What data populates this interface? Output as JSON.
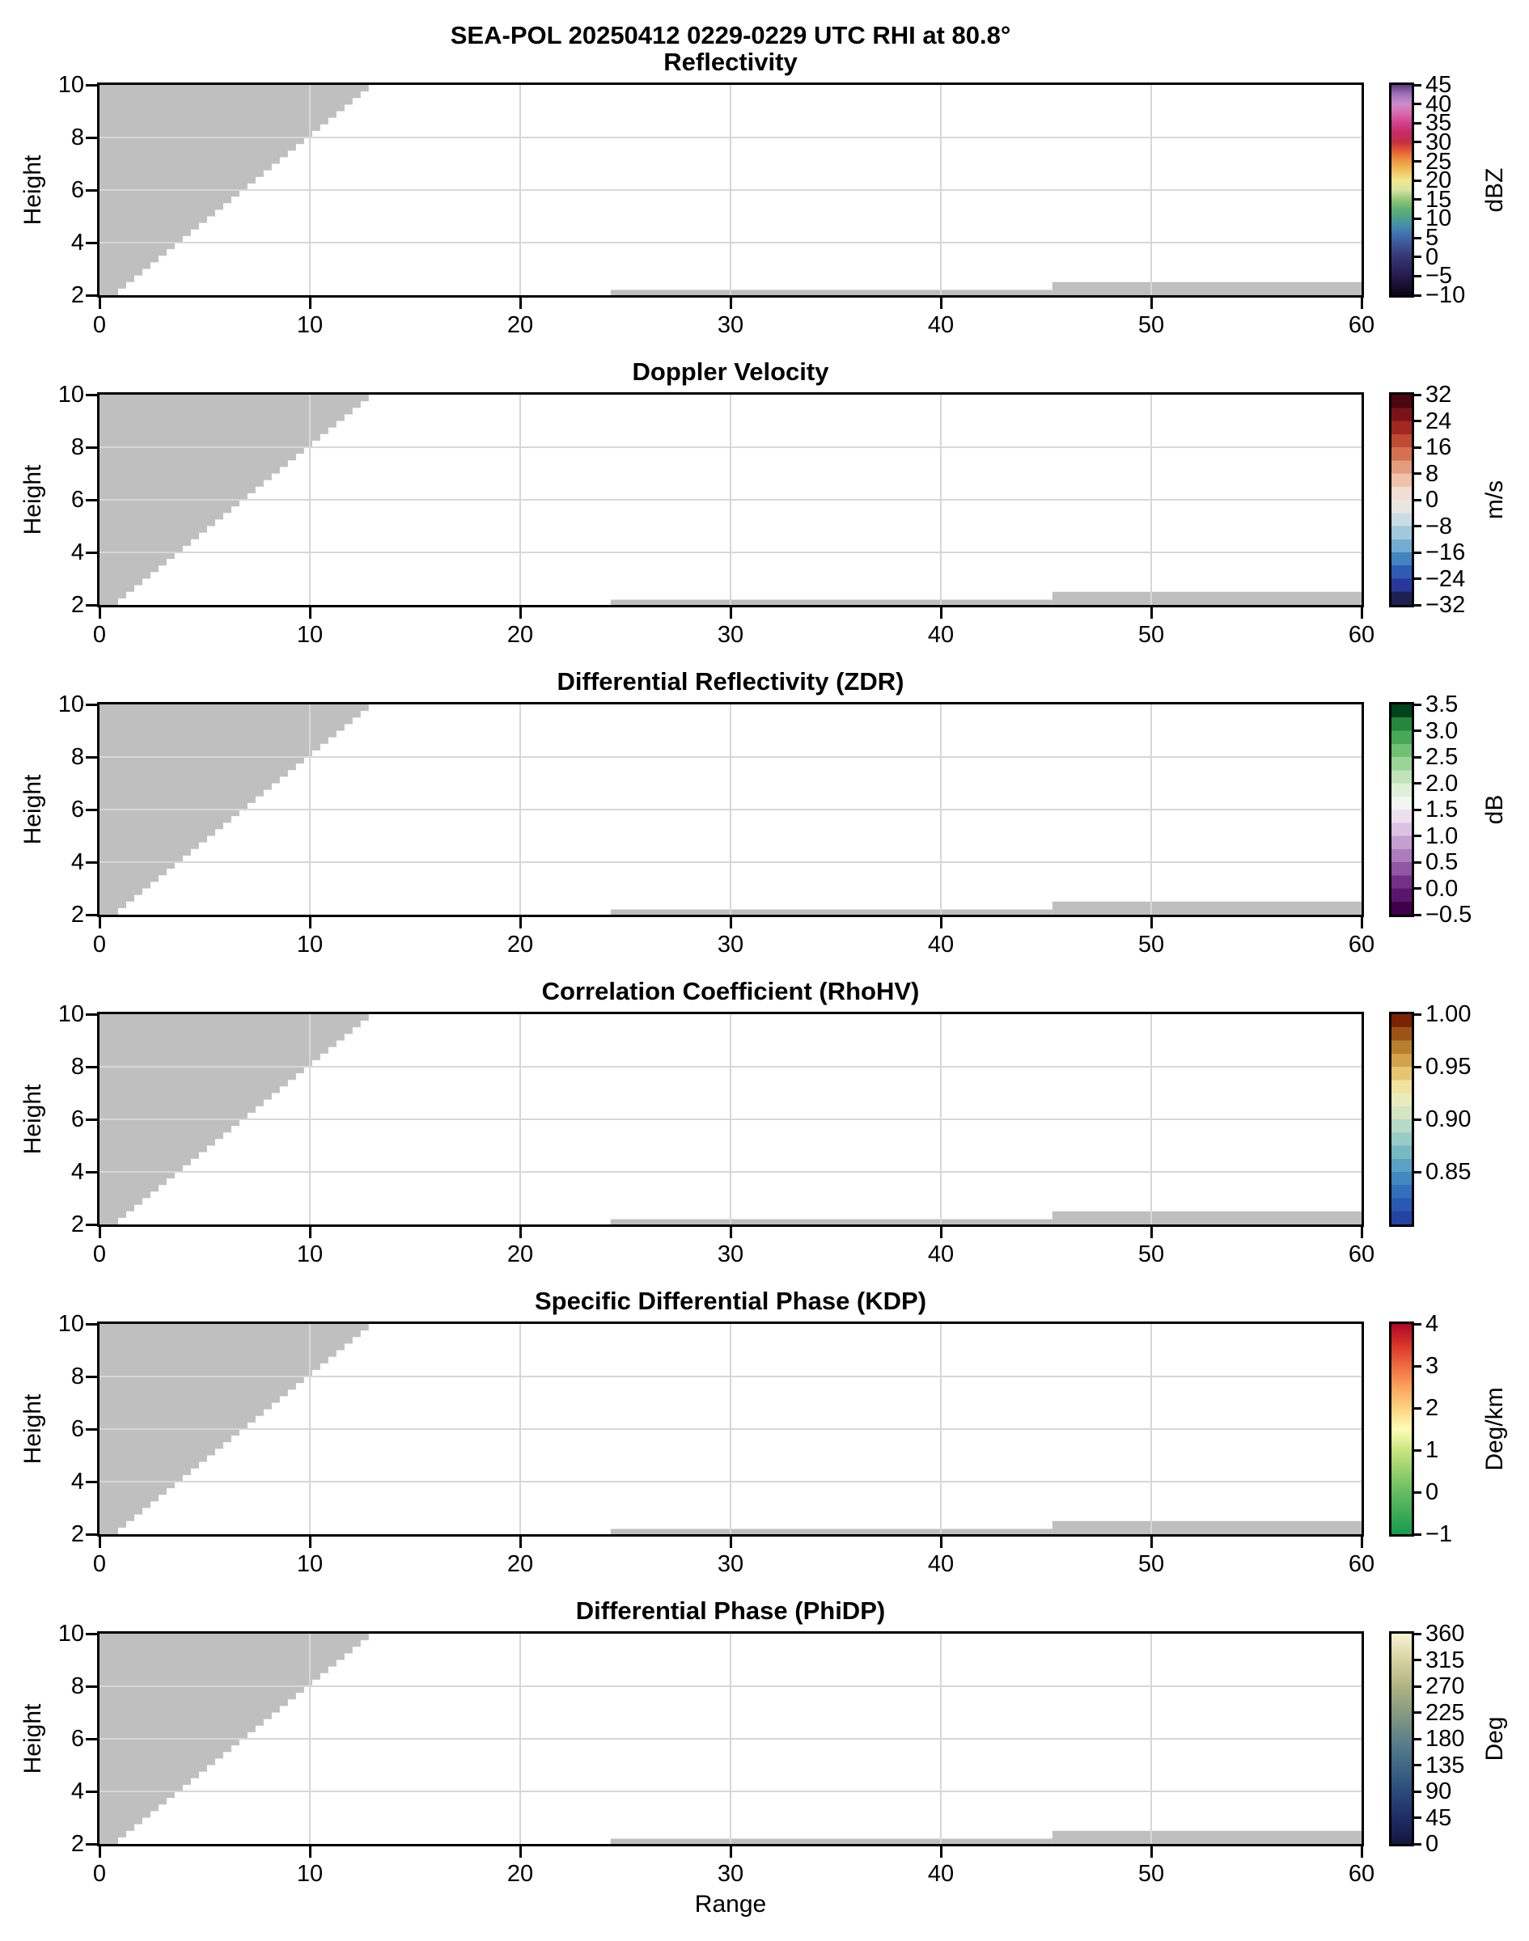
{
  "chart_data": {
    "type": "heatmap",
    "suptitle": "SEA-POL 20250412 0229-0229 UTC RHI at 80.8°",
    "xlabel": "Range",
    "ylabel": "Height",
    "xlim": [
      0,
      60
    ],
    "ylim": [
      2,
      10
    ],
    "xticks": [
      0,
      10,
      20,
      30,
      40,
      50,
      60
    ],
    "yticks": [
      10,
      8,
      6,
      4,
      2
    ],
    "grid": true,
    "grid_x": [
      10,
      20,
      30,
      40,
      50
    ],
    "grid_y": [
      4,
      6,
      8
    ],
    "grid_color": "#d7d7d7",
    "axis_color": "#000000",
    "background_color": "#ffffff",
    "masked_field": {
      "color": "#bfbfbf",
      "wedge": {
        "x_left": 0,
        "y_bottom": 2,
        "y_top": 10,
        "x_boundary_bottom": 0.5,
        "x_boundary_top": 12.8,
        "steps": 32
      },
      "strips": [
        {
          "x0": 24.3,
          "x1": 45.3,
          "y0": 2,
          "y1": 2.2
        },
        {
          "x0": 45.3,
          "x1": 60,
          "y0": 2,
          "y1": 2.5
        }
      ]
    },
    "panels": [
      {
        "title": "Reflectivity",
        "units": "dBZ",
        "vmin": -10,
        "vmax": 45,
        "cbar_ticks": [
          {
            "v": 45,
            "label": "45"
          },
          {
            "v": 40,
            "label": "40"
          },
          {
            "v": 35,
            "label": "35"
          },
          {
            "v": 30,
            "label": "30"
          },
          {
            "v": 25,
            "label": "25"
          },
          {
            "v": 20,
            "label": "20"
          },
          {
            "v": 15,
            "label": "15"
          },
          {
            "v": 10,
            "label": "10"
          },
          {
            "v": 5,
            "label": "5"
          },
          {
            "v": 0,
            "label": "0"
          },
          {
            "v": -5,
            "label": "−5"
          },
          {
            "v": -10,
            "label": "−10"
          }
        ],
        "cmap": {
          "type": "stops",
          "stops": [
            [
              -10,
              "#0a0612"
            ],
            [
              -7.5,
              "#190f2e"
            ],
            [
              -5,
              "#251b4c"
            ],
            [
              -2.5,
              "#2d2862"
            ],
            [
              0,
              "#333672"
            ],
            [
              2.5,
              "#3a4d8d"
            ],
            [
              5,
              "#3f66a8"
            ],
            [
              7.5,
              "#4585b2"
            ],
            [
              10,
              "#4da08f"
            ],
            [
              12.5,
              "#5fb173"
            ],
            [
              15,
              "#94c57b"
            ],
            [
              17.5,
              "#d5e3a1"
            ],
            [
              20,
              "#f2e88f"
            ],
            [
              22.5,
              "#f2c35e"
            ],
            [
              25,
              "#ee9a45"
            ],
            [
              27.5,
              "#e66233"
            ],
            [
              30,
              "#c62f41"
            ],
            [
              32.5,
              "#c62a68"
            ],
            [
              35,
              "#d23f8d"
            ],
            [
              37.5,
              "#dc67ac"
            ],
            [
              40,
              "#cd8ccb"
            ],
            [
              42.5,
              "#a273b8"
            ],
            [
              45,
              "#5c3a80"
            ]
          ]
        }
      },
      {
        "title": "Doppler Velocity",
        "units": "m/s",
        "vmin": -32,
        "vmax": 32,
        "cbar_ticks": [
          {
            "v": 32,
            "label": "32"
          },
          {
            "v": 24,
            "label": "24"
          },
          {
            "v": 16,
            "label": "16"
          },
          {
            "v": 8,
            "label": "8"
          },
          {
            "v": 0,
            "label": "0"
          },
          {
            "v": -8,
            "label": "−8"
          },
          {
            "v": -16,
            "label": "−16"
          },
          {
            "v": -24,
            "label": "−24"
          },
          {
            "v": -32,
            "label": "−32"
          }
        ],
        "cmap": {
          "type": "blocks",
          "colors": [
            "#1c2152",
            "#27379b",
            "#2f5cb2",
            "#4184bf",
            "#72acd0",
            "#a2c8dd",
            "#cadce5",
            "#e9e6e2",
            "#f1ddd1",
            "#f0c2ab",
            "#e49c7f",
            "#d57150",
            "#c04a33",
            "#a22720",
            "#7a121a",
            "#490710"
          ]
        }
      },
      {
        "title": "Differential Reflectivity (ZDR)",
        "units": "dB",
        "vmin": -0.5,
        "vmax": 3.5,
        "cbar_ticks": [
          {
            "v": 3.5,
            "label": "3.5"
          },
          {
            "v": 3.0,
            "label": "3.0"
          },
          {
            "v": 2.5,
            "label": "2.5"
          },
          {
            "v": 2.0,
            "label": "2.0"
          },
          {
            "v": 1.5,
            "label": "1.5"
          },
          {
            "v": 1.0,
            "label": "1.0"
          },
          {
            "v": 0.5,
            "label": "0.5"
          },
          {
            "v": 0.0,
            "label": "0.0"
          },
          {
            "v": -0.5,
            "label": "−0.5"
          }
        ],
        "cmap": {
          "type": "blocks",
          "colors": [
            "#40004b",
            "#5a166a",
            "#743089",
            "#9156a4",
            "#ac7cbc",
            "#c59fd0",
            "#dcc2e1",
            "#ede0ee",
            "#f3f6f0",
            "#def0d8",
            "#c0e5ba",
            "#9bd497",
            "#71c074",
            "#47a859",
            "#24873e",
            "#00441b"
          ]
        }
      },
      {
        "title": "Correlation Coefficient (RhoHV)",
        "units": null,
        "vmin": 0.8,
        "vmax": 1.0,
        "cbar_ticks": [
          {
            "v": 1.0,
            "label": "1.00"
          },
          {
            "v": 0.95,
            "label": "0.95"
          },
          {
            "v": 0.9,
            "label": "0.90"
          },
          {
            "v": 0.85,
            "label": "0.85"
          }
        ],
        "cmap": {
          "type": "blocks",
          "colors": [
            "#2444a5",
            "#2a59b2",
            "#3270bd",
            "#4289c1",
            "#5aa2c4",
            "#78b9c4",
            "#97ccc5",
            "#b5dac5",
            "#d3e5c3",
            "#eaebbb",
            "#f1e29f",
            "#e5c572",
            "#d1a34a",
            "#b8802c",
            "#9b5413",
            "#7b2403"
          ]
        }
      },
      {
        "title": "Specific Differential Phase (KDP)",
        "units": "Deg/km",
        "vmin": -1,
        "vmax": 4,
        "cbar_ticks": [
          {
            "v": 4,
            "label": "4"
          },
          {
            "v": 3,
            "label": "3"
          },
          {
            "v": 2,
            "label": "2"
          },
          {
            "v": 1,
            "label": "1"
          },
          {
            "v": 0,
            "label": "0"
          },
          {
            "v": -1,
            "label": "−1"
          }
        ],
        "cmap": {
          "type": "stops",
          "stops": [
            [
              -1,
              "#169b4d"
            ],
            [
              -0.5,
              "#3dac57"
            ],
            [
              0,
              "#66bd62"
            ],
            [
              0.5,
              "#97d06c"
            ],
            [
              1,
              "#c8e67e"
            ],
            [
              1.5,
              "#fdfdb8"
            ],
            [
              2,
              "#fdd27f"
            ],
            [
              2.5,
              "#fba35c"
            ],
            [
              3,
              "#ef6b42"
            ],
            [
              3.5,
              "#d93429"
            ],
            [
              4,
              "#ae0826"
            ]
          ]
        }
      },
      {
        "title": "Differential Phase (PhiDP)",
        "units": "Deg",
        "vmin": 0,
        "vmax": 360,
        "cbar_ticks": [
          {
            "v": 360,
            "label": "360"
          },
          {
            "v": 315,
            "label": "315"
          },
          {
            "v": 270,
            "label": "270"
          },
          {
            "v": 225,
            "label": "225"
          },
          {
            "v": 180,
            "label": "180"
          },
          {
            "v": 135,
            "label": "135"
          },
          {
            "v": 90,
            "label": "90"
          },
          {
            "v": 45,
            "label": "45"
          },
          {
            "v": 0,
            "label": "0"
          }
        ],
        "cmap": {
          "type": "stops",
          "stops": [
            [
              0,
              "#131740"
            ],
            [
              45,
              "#1e2d66"
            ],
            [
              90,
              "#2b4b7c"
            ],
            [
              135,
              "#3f6787"
            ],
            [
              180,
              "#5e8289"
            ],
            [
              225,
              "#879b80"
            ],
            [
              270,
              "#b0b383"
            ],
            [
              315,
              "#d8d3a1"
            ],
            [
              360,
              "#f8f4d4"
            ]
          ]
        }
      }
    ]
  }
}
